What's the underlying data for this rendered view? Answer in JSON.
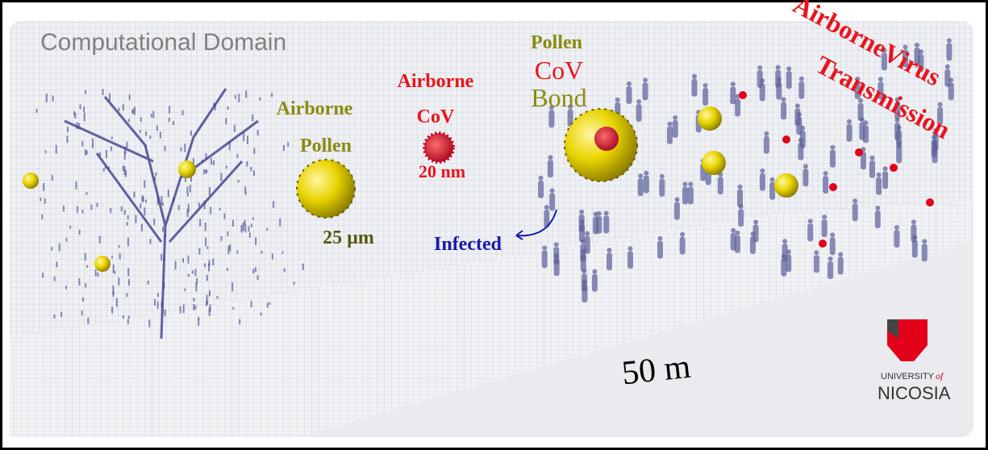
{
  "labels": {
    "domain": "Computational Domain",
    "pollen": {
      "line1": "Airborne",
      "line2": "Pollen",
      "size": "25 µm"
    },
    "cov": {
      "line1": "Airborne",
      "line2": "CoV",
      "size": "20 nm"
    },
    "bond": {
      "line1": "Pollen",
      "line2": "CoV",
      "line3": "Bond"
    },
    "infected": "Infected",
    "transmission": {
      "line1": "AirborneVirus",
      "line2": "Transmission"
    },
    "length": "50 m"
  },
  "logo": {
    "line1": "UNIVERSITY",
    "line2": "of",
    "line3": "NICOSIA"
  }
}
